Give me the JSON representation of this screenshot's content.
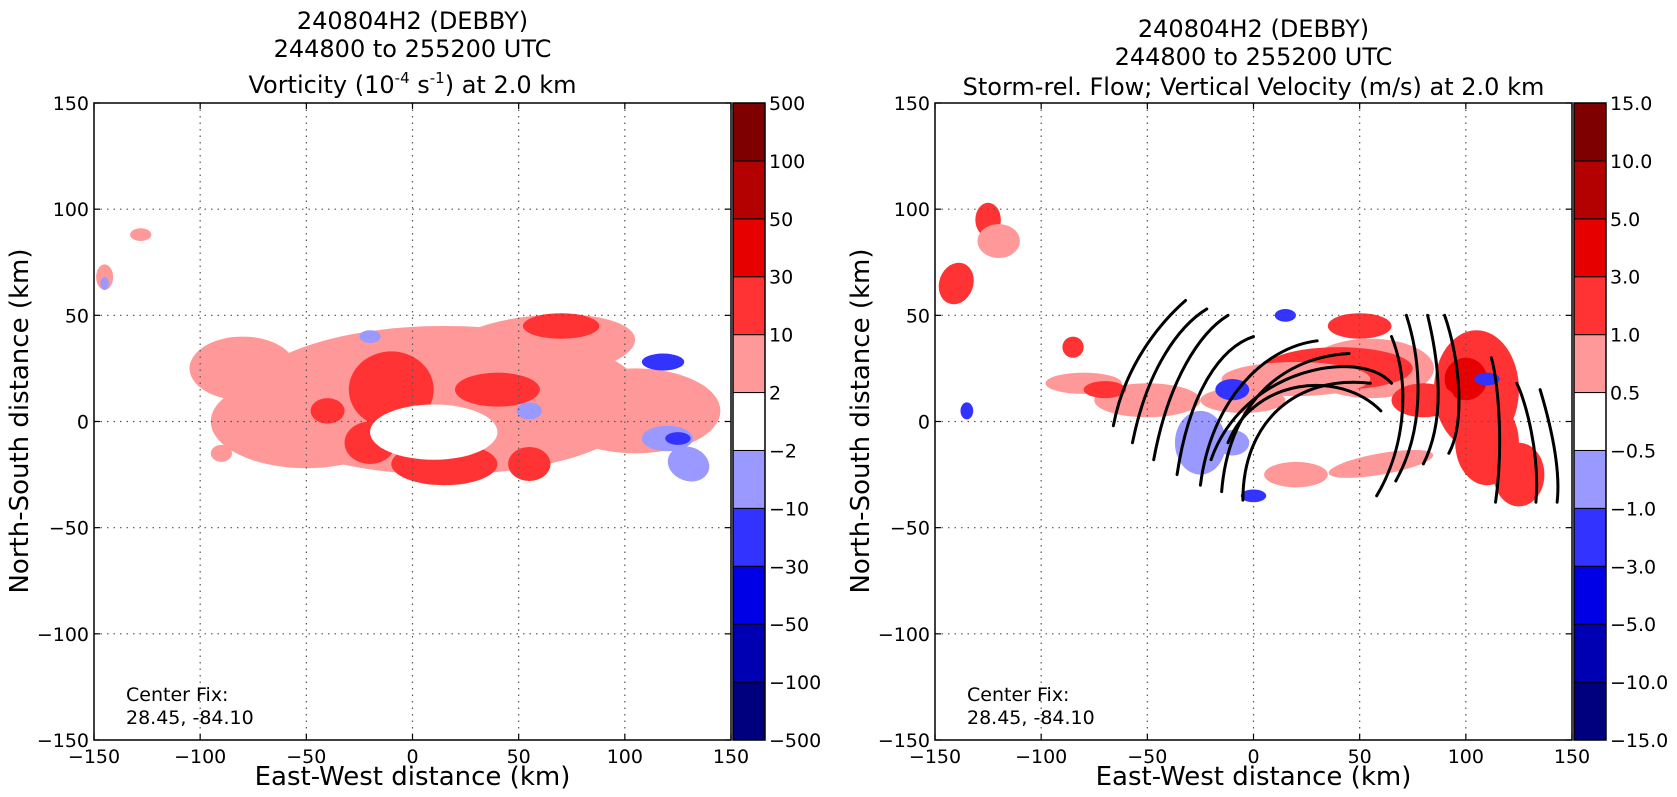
{
  "chart_data": [
    {
      "type": "heatmap",
      "title_lines": [
        "240804H2 (DEBBY)",
        "244800 to 255200 UTC"
      ],
      "title_var": "Vorticity (10",
      "title_sup1": "-4",
      "title_mid": " s",
      "title_sup2": "-1",
      "title_end": ") at 2.0 km",
      "xlabel": "East-West distance (km)",
      "ylabel": "North-South distance (km)",
      "xlim": [
        -150,
        150
      ],
      "ylim": [
        -150,
        150
      ],
      "xticks": [
        "−150",
        "−100",
        "−50",
        "0",
        "50",
        "100",
        "150"
      ],
      "yticks": [
        "−150",
        "−100",
        "−50",
        "0",
        "50",
        "100",
        "150"
      ],
      "grid": true,
      "annotation_lines": [
        "Center Fix:",
        "28.45, -84.10"
      ],
      "colorbar_levels": [
        "−500",
        "−100",
        "−50",
        "−30",
        "−10",
        "−2",
        "2",
        "10",
        "30",
        "50",
        "100",
        "500"
      ],
      "colorbar_colors": [
        "#00007f",
        "#0000b3",
        "#0000e6",
        "#3333ff",
        "#9999ff",
        "#ffffff",
        "#ff9999",
        "#ff3333",
        "#e60000",
        "#b30000",
        "#7f0000"
      ]
    },
    {
      "type": "heatmap",
      "title_lines": [
        "240804H2 (DEBBY)",
        "244800 to 255200 UTC",
        "Storm-rel. Flow; Vertical Velocity (m/s) at 2.0 km"
      ],
      "xlabel": "East-West distance (km)",
      "ylabel": "North-South distance (km)",
      "xlim": [
        -150,
        150
      ],
      "ylim": [
        -150,
        150
      ],
      "xticks": [
        "−150",
        "−100",
        "−50",
        "0",
        "50",
        "100",
        "150"
      ],
      "yticks": [
        "−150",
        "−100",
        "−50",
        "0",
        "50",
        "100",
        "150"
      ],
      "grid": true,
      "annotation_lines": [
        "Center Fix:",
        "28.45, -84.10"
      ],
      "colorbar_levels": [
        "−15.0",
        "−10.0",
        "−5.0",
        "−3.0",
        "−1.0",
        "−0.5",
        "0.5",
        "1.0",
        "3.0",
        "5.0",
        "10.0",
        "15.0"
      ],
      "colorbar_colors": [
        "#00007f",
        "#0000b3",
        "#0000e6",
        "#3333ff",
        "#9999ff",
        "#ffffff",
        "#ff9999",
        "#ff3333",
        "#e60000",
        "#b30000",
        "#7f0000"
      ]
    }
  ]
}
